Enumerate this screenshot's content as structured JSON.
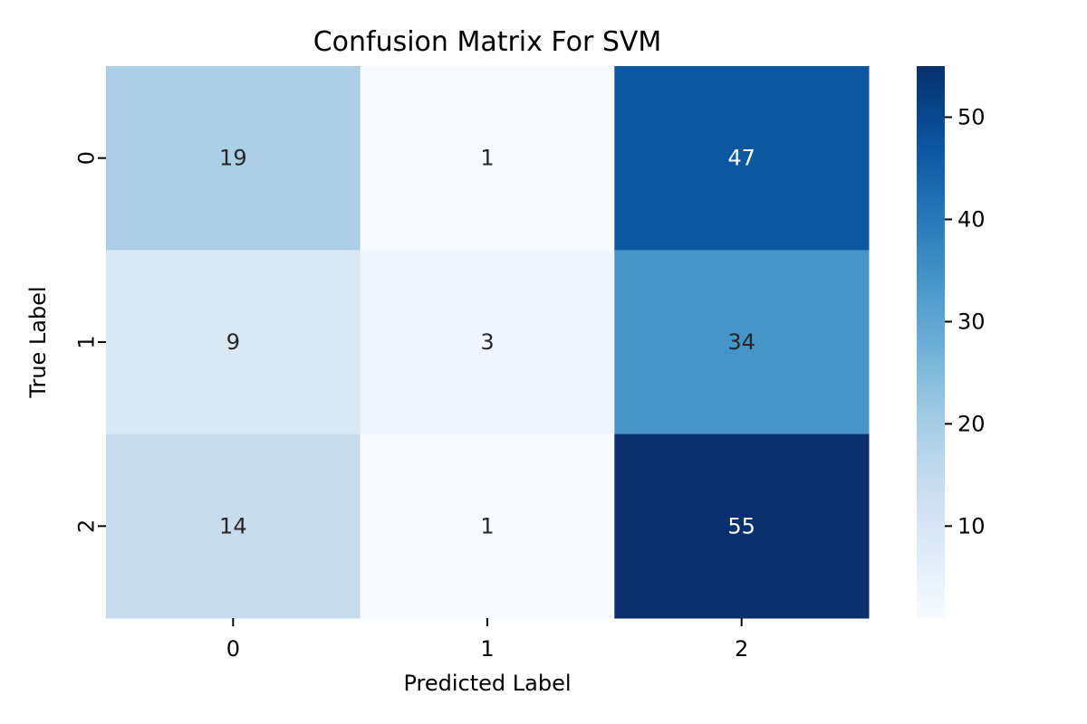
{
  "chart_data": {
    "type": "heatmap",
    "title": "Confusion Matrix For SVM",
    "xlabel": "Predicted Label",
    "ylabel": "True Label",
    "x_categories": [
      "0",
      "1",
      "2"
    ],
    "y_categories": [
      "0",
      "1",
      "2"
    ],
    "values": [
      [
        19,
        1,
        47
      ],
      [
        9,
        3,
        34
      ],
      [
        14,
        1,
        55
      ]
    ],
    "colormap": "Blues",
    "color_range": [
      1,
      55
    ],
    "colorbar_ticks": [
      10,
      20,
      30,
      40,
      50
    ],
    "annotated": true
  }
}
